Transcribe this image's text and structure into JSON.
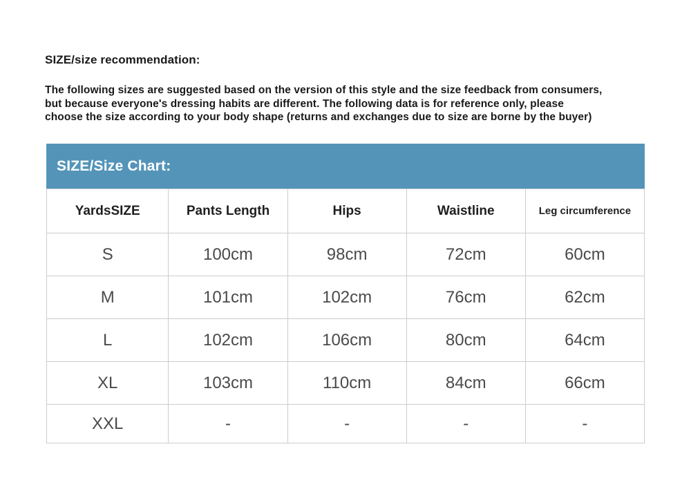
{
  "page": {
    "title": "SIZE/size recommendation:",
    "description": "The following sizes are suggested based on the version of this style and the size feedback from consumers,\nbut because everyone's dressing habits are different. The following data is for reference only, please\nchoose the size according to your body shape (returns and exchanges due to size are borne by the buyer)"
  },
  "size_chart": {
    "header": "SIZE/Size Chart:",
    "columns": [
      "YardsSIZE",
      "Pants Length",
      "Hips",
      "Waistline",
      "Leg circumference"
    ],
    "rows": [
      {
        "size": "S",
        "values": [
          "100cm",
          "98cm",
          "72cm",
          "60cm"
        ]
      },
      {
        "size": "M",
        "values": [
          "101cm",
          "102cm",
          "76cm",
          "62cm"
        ]
      },
      {
        "size": "L",
        "values": [
          "102cm",
          "106cm",
          "80cm",
          "64cm"
        ]
      },
      {
        "size": "XL",
        "values": [
          "103cm",
          "110cm",
          "84cm",
          "66cm"
        ]
      },
      {
        "size": "XXL",
        "values": [
          "-",
          "-",
          "-",
          "-"
        ]
      }
    ]
  },
  "colors": {
    "accent_blue": "#5494b9",
    "border_gray": "#cccccc",
    "heading_text": "#1a1a1a",
    "table_text": "#4a4a4a",
    "header_bar_text": "#ffffff",
    "background": "#ffffff"
  }
}
